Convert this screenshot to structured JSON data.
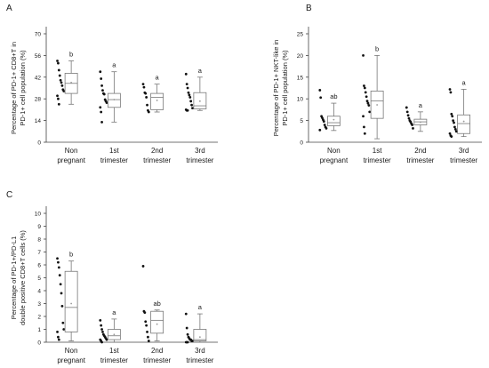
{
  "chart_data": [
    {
      "type": "box",
      "panel_label": "A",
      "ylabel": [
        "Percentage of PD-1+ CD8+T in",
        "PD-1+ cell population (%)"
      ],
      "ylim": [
        0,
        70
      ],
      "yticks": [
        0,
        14,
        28,
        42,
        56,
        70
      ],
      "categories": [
        [
          "Non",
          "pregnant"
        ],
        [
          "1st",
          "trimester"
        ],
        [
          "2nd",
          "trimester"
        ],
        [
          "3rd",
          "trimester"
        ]
      ],
      "letters": [
        "b",
        "a",
        "a",
        "a"
      ],
      "boxes": [
        {
          "whisker_low": 24.5,
          "q1": 31.5,
          "median": 38,
          "q3": 44.5,
          "whisker_high": 52.5,
          "mean": 38.5
        },
        {
          "whisker_low": 13,
          "q1": 22.5,
          "median": 27.5,
          "q3": 31.5,
          "whisker_high": 45.5,
          "mean": 27.5
        },
        {
          "whisker_low": 19.5,
          "q1": 21,
          "median": 29,
          "q3": 31.5,
          "whisker_high": 37.5,
          "mean": 27
        },
        {
          "whisker_low": 20.5,
          "q1": 21.5,
          "median": 23.5,
          "q3": 32,
          "whisker_high": 42,
          "mean": 26.5
        }
      ],
      "points": [
        [
          52.5,
          51,
          46.5,
          43,
          40,
          38.5,
          36.5,
          34,
          33,
          30,
          28,
          24.5
        ],
        [
          45.5,
          41,
          36.5,
          33.5,
          31.5,
          31,
          27.5,
          26.5,
          25.5,
          22.5,
          19.5,
          13
        ],
        [
          37.5,
          35.5,
          32,
          31.5,
          29,
          24,
          20.5,
          19.5
        ],
        [
          44,
          37.5,
          35,
          32,
          30.5,
          29,
          26.5,
          24,
          22,
          21,
          20.5,
          20.5
        ]
      ]
    },
    {
      "type": "box",
      "panel_label": "B",
      "ylabel": [
        "Percentage of PD-1+ NKT-like in",
        "PD-1+ cell population (%)"
      ],
      "ylim": [
        0,
        25
      ],
      "yticks": [
        0,
        5,
        10,
        15,
        20,
        25
      ],
      "categories": [
        [
          "Non",
          "pregnant"
        ],
        [
          "1st",
          "trimester"
        ],
        [
          "2nd",
          "trimester"
        ],
        [
          "3rd",
          "trimester"
        ]
      ],
      "letters": [
        "ab",
        "b",
        "a",
        "a"
      ],
      "boxes": [
        {
          "whisker_low": 2.7,
          "q1": 3.8,
          "median": 4.5,
          "q3": 6,
          "whisker_high": 9,
          "mean": 5.2
        },
        {
          "whisker_low": 0.8,
          "q1": 5.5,
          "median": 9.5,
          "q3": 11.8,
          "whisker_high": 20,
          "mean": 8.6
        },
        {
          "whisker_low": 2.5,
          "q1": 4,
          "median": 4.7,
          "q3": 5.3,
          "whisker_high": 7,
          "mean": 4.6
        },
        {
          "whisker_low": 1.3,
          "q1": 2,
          "median": 4.3,
          "q3": 6.3,
          "whisker_high": 12.2,
          "mean": 4.8
        }
      ],
      "points": [
        [
          12,
          10.3,
          6,
          5.6,
          5.2,
          4.8,
          4,
          3.5,
          3.2,
          2.8
        ],
        [
          20,
          13,
          12.5,
          11.5,
          10.5,
          9.5,
          9,
          8.5,
          7,
          6,
          3.5,
          2
        ],
        [
          8,
          7,
          6.2,
          5.5,
          5,
          4.7,
          4.3,
          4,
          3.2
        ],
        [
          12.2,
          11.5,
          6.5,
          6,
          5,
          4.5,
          3.5,
          3,
          2.5,
          2,
          1.5,
          1.3
        ]
      ]
    },
    {
      "type": "box",
      "panel_label": "C",
      "ylabel": [
        "Percentage of PD-1+/PD-L1",
        "double positive CD8+T cells (%)"
      ],
      "ylim": [
        0,
        10
      ],
      "yticks": [
        0,
        1,
        2,
        3,
        4,
        5,
        6,
        7,
        8,
        9,
        10
      ],
      "categories": [
        [
          "Non",
          "pregnant"
        ],
        [
          "1st",
          "trimester"
        ],
        [
          "2nd",
          "trimester"
        ],
        [
          "3rd",
          "trimester"
        ]
      ],
      "letters": [
        "b",
        "a",
        "ab",
        "a"
      ],
      "boxes": [
        {
          "whisker_low": 0.1,
          "q1": 0.8,
          "median": 2.7,
          "q3": 5.5,
          "whisker_high": 6.3,
          "mean": 3
        },
        {
          "whisker_low": 0,
          "q1": 0.2,
          "median": 0.5,
          "q3": 1,
          "whisker_high": 1.8,
          "mean": 0.6
        },
        {
          "whisker_low": 0.1,
          "q1": 0.7,
          "median": 1.7,
          "q3": 2.4,
          "whisker_high": 2.5,
          "mean": 1.4
        },
        {
          "whisker_low": 0,
          "q1": 0.1,
          "median": 0.2,
          "q3": 1,
          "whisker_high": 2.2,
          "mean": 0.4
        }
      ],
      "points": [
        [
          6.5,
          6.2,
          5.8,
          5.2,
          4.5,
          3.8,
          2.8,
          1.5,
          1,
          0.8,
          0.4,
          0.2
        ],
        [
          1.7,
          1.3,
          1,
          0.8,
          0.6,
          0.5,
          0.4,
          0.3,
          0.2,
          0.2,
          0.1,
          0
        ],
        [
          5.9,
          2.4,
          2.3,
          1.6,
          1.3,
          0.8,
          0.4,
          0.1
        ],
        [
          2.2,
          1.1,
          0.6,
          0.4,
          0.3,
          0.2,
          0.2,
          0.1,
          0.1,
          0,
          0,
          0
        ]
      ]
    }
  ]
}
